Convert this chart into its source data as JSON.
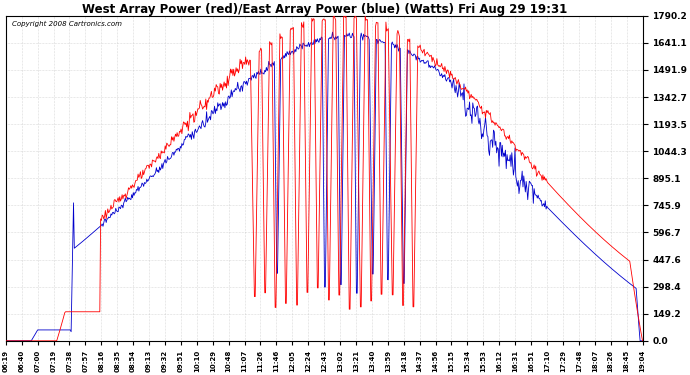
{
  "title": "West Array Power (red)/East Array Power (blue) (Watts) Fri Aug 29 19:31",
  "copyright": "Copyright 2008 Cartronics.com",
  "ylabel_right_ticks": [
    0.0,
    149.2,
    298.4,
    447.6,
    596.7,
    745.9,
    895.1,
    1044.3,
    1193.5,
    1342.7,
    1491.9,
    1641.1,
    1790.2
  ],
  "ylim": [
    0,
    1790.2
  ],
  "bg_color": "#ffffff",
  "grid_color": "#bbbbbb",
  "red_color": "#ff0000",
  "blue_color": "#0000cc",
  "x_tick_labels": [
    "06:19",
    "06:40",
    "07:00",
    "07:19",
    "07:38",
    "07:57",
    "08:16",
    "08:35",
    "08:54",
    "09:13",
    "09:32",
    "09:51",
    "10:10",
    "10:29",
    "10:48",
    "11:07",
    "11:26",
    "11:46",
    "12:05",
    "12:24",
    "12:43",
    "13:02",
    "13:21",
    "13:40",
    "13:59",
    "14:18",
    "14:37",
    "14:56",
    "15:15",
    "15:34",
    "15:53",
    "16:12",
    "16:31",
    "16:51",
    "17:10",
    "17:29",
    "17:48",
    "18:07",
    "18:26",
    "18:45",
    "19:04"
  ],
  "figwidth": 6.9,
  "figheight": 3.75,
  "dpi": 100
}
